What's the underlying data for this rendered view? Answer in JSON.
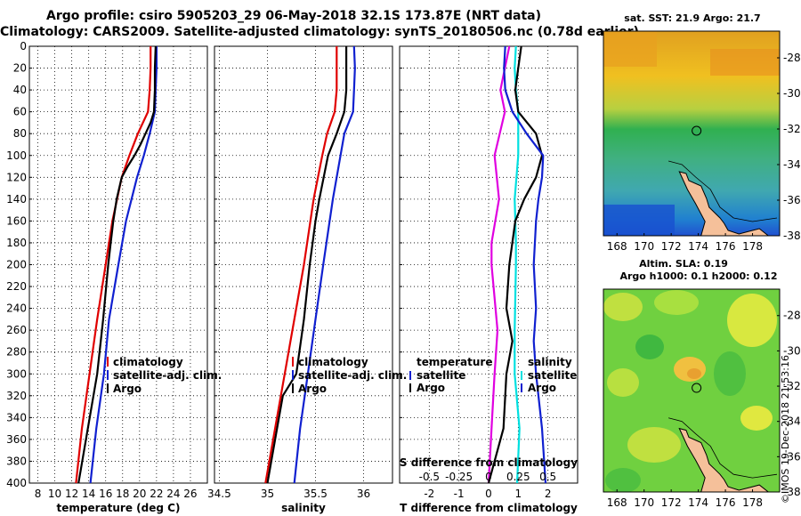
{
  "header": {
    "title_line1": "Argo profile: csiro 5905203_29 06-May-2018 32.1S 173.87E (NRT data)",
    "title_line2": "Climatology: CARS2009. Satellite-adjusted climatology: synTS_20180506.nc (0.78d earlier)"
  },
  "colors": {
    "climatology": "#e00000",
    "satellite": "#1020d0",
    "argo": "#000000",
    "temperature_diff": "#e000e0",
    "salinity_diff": "#00e0e0"
  },
  "credit": "©IMOS 19-Dec-2018 21:53:16",
  "chart_data": [
    {
      "type": "line",
      "name": "temperature",
      "xlabel": "temperature (deg C)",
      "ylabel": "depth",
      "xlim": [
        7,
        28
      ],
      "ylim": [
        0,
        400
      ],
      "xticks": [
        8,
        10,
        12,
        14,
        16,
        18,
        20,
        22,
        24,
        26
      ],
      "yticks": [
        0,
        20,
        40,
        60,
        80,
        100,
        120,
        140,
        160,
        180,
        200,
        220,
        240,
        260,
        280,
        300,
        320,
        340,
        360,
        380,
        400
      ],
      "legend": [
        "climatology",
        "satellite-adj. clim.",
        "Argo"
      ],
      "series": [
        {
          "name": "climatology",
          "depth": [
            0,
            20,
            40,
            60,
            70,
            80,
            100,
            120,
            160,
            200,
            250,
            300,
            350,
            400
          ],
          "values": [
            21.3,
            21.3,
            21.2,
            21.0,
            20.4,
            19.8,
            18.8,
            17.9,
            16.8,
            16.0,
            15.0,
            14.1,
            13.2,
            12.5
          ]
        },
        {
          "name": "satellite-adj. clim.",
          "depth": [
            0,
            20,
            40,
            60,
            80,
            100,
            120,
            160,
            200,
            250,
            300,
            350,
            400
          ],
          "values": [
            22.0,
            22.0,
            21.9,
            21.8,
            21.2,
            20.5,
            19.7,
            18.4,
            17.5,
            16.4,
            15.8,
            14.9,
            14.2
          ]
        },
        {
          "name": "Argo",
          "depth": [
            0,
            20,
            40,
            60,
            70,
            80,
            90,
            100,
            110,
            120,
            140,
            160,
            180,
            200,
            250,
            300,
            350,
            400
          ],
          "values": [
            21.9,
            21.8,
            21.8,
            21.7,
            21.3,
            20.7,
            20.1,
            19.4,
            18.6,
            17.9,
            17.3,
            16.9,
            16.6,
            16.3,
            15.7,
            15.0,
            13.9,
            12.8
          ]
        }
      ]
    },
    {
      "type": "line",
      "name": "salinity",
      "xlabel": "salinity",
      "ylabel": "depth",
      "xlim": [
        34.45,
        36.3
      ],
      "ylim": [
        0,
        400
      ],
      "xticks": [
        34.5,
        35,
        35.5,
        36
      ],
      "xtick_labels": [
        "34.5",
        "35",
        "35.5",
        "36"
      ],
      "legend": [
        "climatology",
        "satellite-adj. clim.",
        "Argo"
      ],
      "series": [
        {
          "name": "climatology",
          "depth": [
            0,
            40,
            60,
            80,
            100,
            140,
            200,
            250,
            300,
            350,
            400
          ],
          "values": [
            35.72,
            35.72,
            35.7,
            35.62,
            35.57,
            35.48,
            35.38,
            35.28,
            35.18,
            35.08,
            34.98
          ]
        },
        {
          "name": "satellite-adj. clim.",
          "depth": [
            0,
            20,
            40,
            60,
            80,
            100,
            120,
            140,
            200,
            250,
            300,
            350,
            400
          ],
          "values": [
            35.9,
            35.91,
            35.9,
            35.89,
            35.8,
            35.76,
            35.72,
            35.68,
            35.58,
            35.5,
            35.42,
            35.34,
            35.28
          ]
        },
        {
          "name": "Argo",
          "depth": [
            0,
            20,
            40,
            60,
            80,
            100,
            140,
            160,
            200,
            250,
            300,
            320,
            350,
            400
          ],
          "values": [
            35.82,
            35.82,
            35.82,
            35.8,
            35.72,
            35.63,
            35.54,
            35.5,
            35.44,
            35.38,
            35.3,
            35.16,
            35.1,
            35.0
          ]
        }
      ]
    },
    {
      "type": "line",
      "name": "difference",
      "xlabel": "T difference from climatology",
      "xlim": [
        -3.0,
        3.0
      ],
      "xticks": [
        -2,
        -1,
        0,
        1,
        2
      ],
      "xtick_labels": [
        "-2",
        "-1",
        "0",
        "1",
        "2"
      ],
      "secondary_xlabel": "S difference from climatology",
      "secondary_xticks": [
        -0.5,
        -0.25,
        0,
        0.25,
        0.5
      ],
      "secondary_xtick_labels": [
        "-0.5",
        "-0.25",
        "0",
        "0.25",
        "0.5"
      ],
      "ylim": [
        0,
        400
      ],
      "legend_left_title": "temperature",
      "legend_right_title": "salinity",
      "legend_items": [
        "satellite",
        "Argo"
      ],
      "series": [
        {
          "name": "temperature satellite",
          "depth": [
            0,
            20,
            40,
            60,
            100,
            140,
            180,
            200,
            260,
            300,
            350,
            400
          ],
          "values": [
            0.7,
            0.55,
            0.4,
            0.55,
            0.2,
            0.35,
            0.1,
            0.1,
            0.3,
            0.2,
            0.1,
            0.0
          ]
        },
        {
          "name": "salinity satellite",
          "depth": [
            0,
            20,
            40,
            60,
            100,
            140,
            180,
            200,
            260,
            300,
            350,
            400
          ],
          "values": [
            0.23,
            0.22,
            0.23,
            0.25,
            0.25,
            0.22,
            0.23,
            0.23,
            0.22,
            0.22,
            0.26,
            0.24
          ]
        },
        {
          "name": "temperature Argo",
          "depth": [
            0,
            20,
            40,
            60,
            80,
            100,
            120,
            140,
            160,
            200,
            240,
            270,
            300,
            350,
            400
          ],
          "values": [
            1.1,
            1.0,
            0.9,
            1.0,
            1.6,
            1.8,
            1.6,
            1.2,
            0.9,
            0.7,
            0.6,
            0.8,
            0.6,
            0.5,
            0.0
          ]
        },
        {
          "name": "salinity Argo",
          "depth": [
            0,
            20,
            40,
            60,
            80,
            100,
            120,
            140,
            160,
            200,
            240,
            270,
            300,
            350,
            400
          ],
          "values": [
            0.14,
            0.13,
            0.14,
            0.2,
            0.32,
            0.46,
            0.45,
            0.42,
            0.4,
            0.38,
            0.4,
            0.38,
            0.4,
            0.45,
            0.48
          ]
        }
      ]
    },
    {
      "type": "heatmap",
      "name": "sst-map",
      "title": "sat. SST: 21.9 Argo: 21.7",
      "xlim": [
        167,
        180
      ],
      "ylim": [
        -38,
        -26.5
      ],
      "xticks": [
        168,
        170,
        172,
        174,
        176,
        178
      ],
      "yticks": [
        -28,
        -30,
        -32,
        -34,
        -36,
        -38
      ],
      "argo_position": [
        173.87,
        -32.1
      ]
    },
    {
      "type": "heatmap",
      "name": "sla-map",
      "title_line1": "Altim. SLA: 0.19",
      "title_line2": "Argo h1000: 0.1 h2000: 0.12",
      "xlim": [
        167,
        180
      ],
      "ylim": [
        -38,
        -26.5
      ],
      "xticks": [
        168,
        170,
        172,
        174,
        176,
        178
      ],
      "yticks": [
        -28,
        -30,
        -32,
        -34,
        -36,
        -38
      ],
      "argo_position": [
        173.87,
        -32.1
      ]
    }
  ]
}
